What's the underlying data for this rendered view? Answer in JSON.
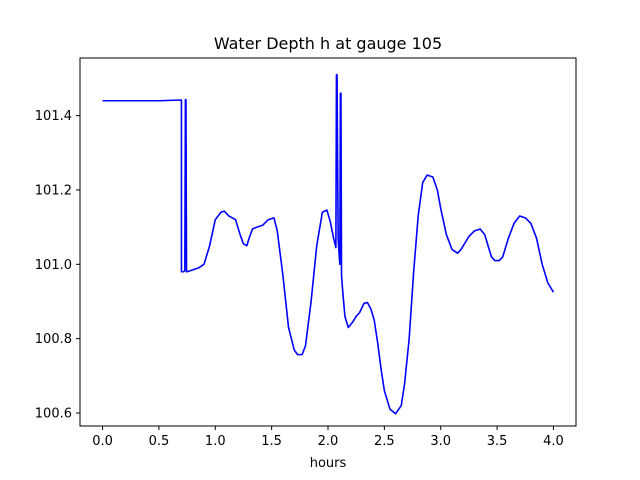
{
  "chart_data": {
    "type": "line",
    "title": "Water Depth h at gauge 105",
    "xlabel": "hours",
    "ylabel": "",
    "xlim": [
      -0.2,
      4.2
    ],
    "ylim": [
      100.565,
      101.555
    ],
    "xticks": [
      0.0,
      0.5,
      1.0,
      1.5,
      2.0,
      2.5,
      3.0,
      3.5,
      4.0
    ],
    "xtick_labels": [
      "0.0",
      "0.5",
      "1.0",
      "1.5",
      "2.0",
      "2.5",
      "3.0",
      "3.5",
      "4.0"
    ],
    "yticks": [
      100.6,
      100.8,
      101.0,
      101.2,
      101.4
    ],
    "ytick_labels": [
      "100.6",
      "100.8",
      "101.0",
      "101.2",
      "101.4"
    ],
    "grid": false,
    "series": [
      {
        "color": "#0000ff",
        "x": [
          0.0,
          0.25,
          0.5,
          0.7,
          0.7,
          0.705,
          0.72,
          0.73,
          0.735,
          0.74,
          0.745,
          0.75,
          0.8,
          0.85,
          0.9,
          0.95,
          1.0,
          1.05,
          1.08,
          1.12,
          1.18,
          1.22,
          1.25,
          1.28,
          1.3,
          1.33,
          1.37,
          1.42,
          1.47,
          1.52,
          1.55,
          1.6,
          1.65,
          1.7,
          1.73,
          1.77,
          1.8,
          1.85,
          1.9,
          1.95,
          1.99,
          2.02,
          2.05,
          2.07,
          2.075,
          2.08,
          2.09,
          2.1,
          2.105,
          2.11,
          2.115,
          2.12,
          2.13,
          2.15,
          2.18,
          2.22,
          2.25,
          2.28,
          2.32,
          2.35,
          2.38,
          2.41,
          2.44,
          2.47,
          2.5,
          2.55,
          2.6,
          2.65,
          2.68,
          2.72,
          2.76,
          2.8,
          2.84,
          2.88,
          2.93,
          2.97,
          3.0,
          3.05,
          3.1,
          3.15,
          3.18,
          3.22,
          3.25,
          3.3,
          3.35,
          3.39,
          3.42,
          3.45,
          3.48,
          3.52,
          3.55,
          3.6,
          3.65,
          3.7,
          3.75,
          3.8,
          3.85,
          3.9,
          3.95,
          4.0
        ],
        "y": [
          101.44,
          101.44,
          101.44,
          101.442,
          100.98,
          100.98,
          100.98,
          100.983,
          101.443,
          101.443,
          100.98,
          100.98,
          100.985,
          100.99,
          101.0,
          101.05,
          101.12,
          101.14,
          101.143,
          101.13,
          101.12,
          101.08,
          101.055,
          101.05,
          101.07,
          101.095,
          101.1,
          101.105,
          101.12,
          101.125,
          101.09,
          100.97,
          100.83,
          100.77,
          100.757,
          100.757,
          100.78,
          100.9,
          101.05,
          101.14,
          101.146,
          101.115,
          101.07,
          101.045,
          101.51,
          101.51,
          101.07,
          101.02,
          101.0,
          101.46,
          101.46,
          100.97,
          100.93,
          100.86,
          100.83,
          100.845,
          100.86,
          100.87,
          100.895,
          100.897,
          100.88,
          100.85,
          100.79,
          100.72,
          100.66,
          100.61,
          100.598,
          100.62,
          100.68,
          100.8,
          100.98,
          101.13,
          101.22,
          101.24,
          101.235,
          101.2,
          101.15,
          101.08,
          101.04,
          101.03,
          101.04,
          101.06,
          101.075,
          101.09,
          101.095,
          101.08,
          101.05,
          101.02,
          101.01,
          101.01,
          101.02,
          101.07,
          101.11,
          101.13,
          101.125,
          101.11,
          101.07,
          101.0,
          100.95,
          100.925
        ]
      }
    ]
  }
}
